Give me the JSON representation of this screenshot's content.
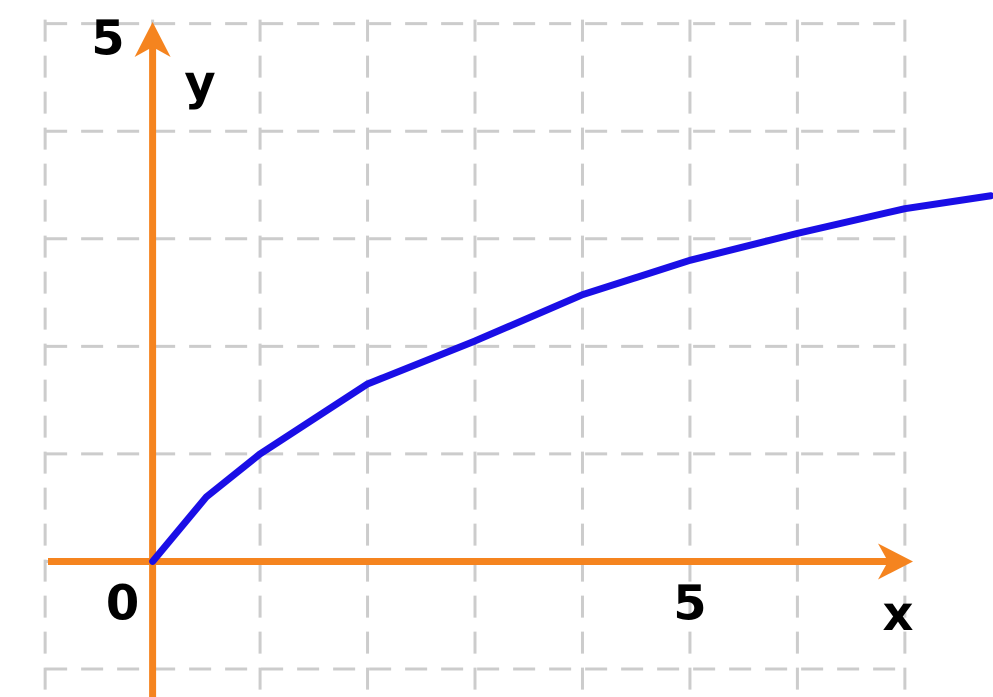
{
  "chart_data": {
    "type": "line",
    "x": [
      0,
      0.5,
      1,
      2,
      3,
      4,
      5,
      6,
      7,
      7.8
    ],
    "series": [
      {
        "color": "#1a0ee6",
        "values": [
          0,
          0.6,
          1.0,
          1.65,
          2.05,
          2.48,
          2.8,
          3.05,
          3.28,
          3.4
        ]
      }
    ],
    "xlabel": "x",
    "ylabel": "y",
    "xlim": [
      -1.42,
      7.82
    ],
    "ylim": [
      -1.26,
      5.22
    ],
    "xticks": [
      0,
      5
    ],
    "yticks": [
      5
    ],
    "grid": true,
    "grid_xticks": [
      -1,
      0,
      1,
      2,
      3,
      4,
      5,
      6,
      7
    ],
    "grid_yticks": [
      -1,
      0,
      1,
      2,
      3,
      4,
      5
    ],
    "axis_color": "#f5841f"
  }
}
